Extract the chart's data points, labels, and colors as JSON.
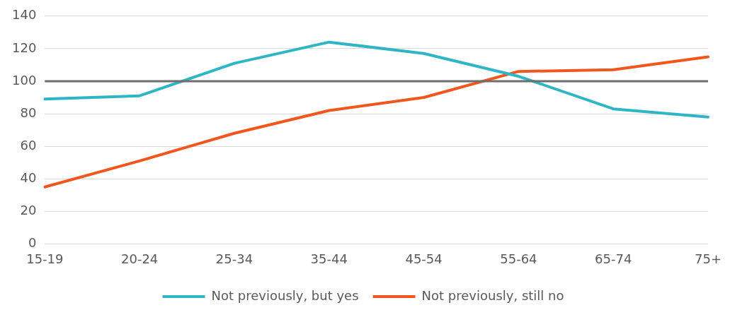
{
  "chart_data": {
    "type": "line",
    "categories": [
      "15-19",
      "20-24",
      "25-34",
      "35-44",
      "45-54",
      "55-64",
      "65-74",
      "75+"
    ],
    "series": [
      {
        "name": "Not previously, but yes",
        "color": "#2fb6c4",
        "values": [
          89,
          91,
          111,
          124,
          117,
          103,
          83,
          78
        ]
      },
      {
        "name": "Not previously, still no",
        "color": "#f0561d",
        "values": [
          35,
          51,
          68,
          82,
          90,
          106,
          107,
          115
        ]
      }
    ],
    "ylim": [
      0,
      140
    ],
    "yticks": [
      0,
      20,
      40,
      60,
      80,
      100,
      120,
      140
    ],
    "grid": "y",
    "legend": "bottom",
    "marker": "none",
    "line_style": "solid",
    "ref_lines": [
      {
        "axis": "y",
        "value": 100,
        "color": "#6d6d6d"
      }
    ]
  }
}
